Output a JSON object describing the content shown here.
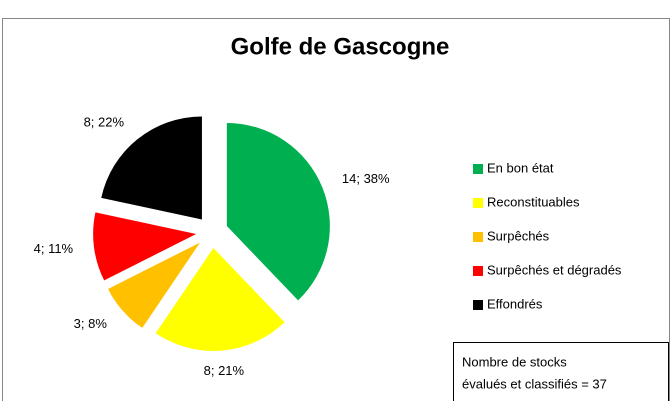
{
  "chart_data": {
    "type": "pie",
    "title": "Golfe de Gascogne",
    "categories": [
      "En bon état",
      "Reconstituables",
      "Surpêchés",
      "Surpêchés et dégradés",
      "Effondrés"
    ],
    "values": [
      14,
      8,
      3,
      4,
      8
    ],
    "value_labels": [
      "14; 38%",
      "8; 21%",
      "3; 8%",
      "4; 11%",
      "8; 22%"
    ],
    "colors": [
      "#00b050",
      "#ffff00",
      "#ffc000",
      "#ff0000",
      "#000000"
    ],
    "annotation": [
      "Nombre de stocks",
      "évalués  et classifiés = 37"
    ]
  }
}
